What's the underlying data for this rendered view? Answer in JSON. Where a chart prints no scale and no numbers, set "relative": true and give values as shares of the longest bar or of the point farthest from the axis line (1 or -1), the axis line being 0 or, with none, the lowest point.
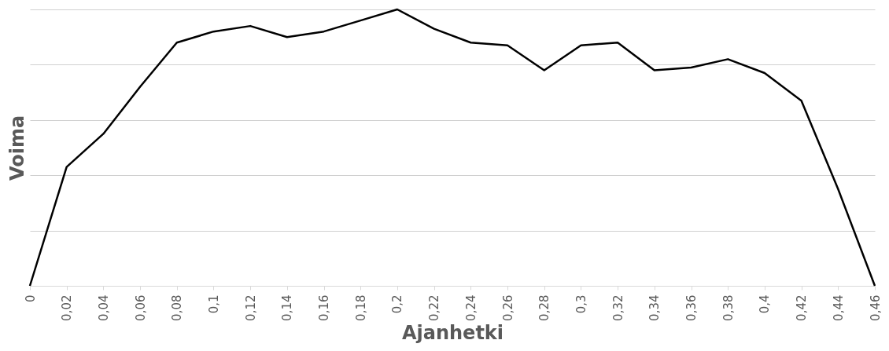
{
  "chart_data": {
    "type": "line",
    "xlabel": "Ajanhetki",
    "ylabel": "Voima",
    "relative": true,
    "grid": "y",
    "marker": "none",
    "line_style": "solid",
    "categories": [
      "0",
      "0,02",
      "0,04",
      "0,06",
      "0,08",
      "0,1",
      "0,12",
      "0,14",
      "0,16",
      "0,18",
      "0,2",
      "0,22",
      "0,24",
      "0,26",
      "0,28",
      "0,3",
      "0,32",
      "0,34",
      "0,36",
      "0,38",
      "0,4",
      "0,42",
      "0,44",
      "0,46"
    ],
    "series": [
      {
        "color": "#000000",
        "values": [
          0,
          0.43,
          0.55,
          0.72,
          0.88,
          0.92,
          0.94,
          0.9,
          0.92,
          0.96,
          1,
          0.93,
          0.88,
          0.87,
          0.78,
          0.87,
          0.88,
          0.78,
          0.79,
          0.82,
          0.77,
          0.67,
          0.35,
          0
        ]
      }
    ]
  }
}
